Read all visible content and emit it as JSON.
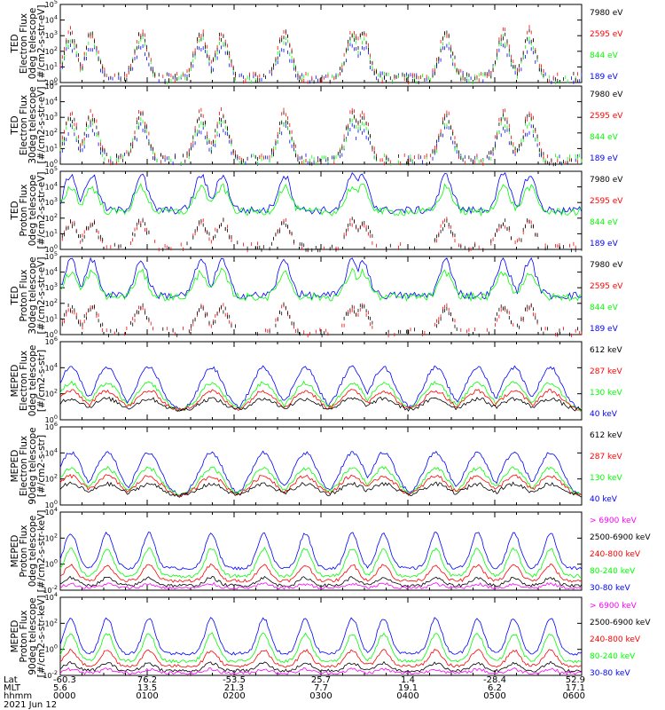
{
  "colors": {
    "black": "#000000",
    "red": "#ff0000",
    "green": "#00ff00",
    "blue": "#0000ff",
    "magenta": "#ff00ff"
  },
  "chart_data": [
    {
      "type": "line",
      "ylabel": [
        "TED",
        "Electron Flux",
        "0deg telescope",
        "[#/cm2-s-str-eV]"
      ],
      "yscale": "log",
      "ylim": [
        1,
        100000
      ],
      "ytick_labels": [
        "10^0",
        "10^1",
        "10^2",
        "10^3",
        "10^4",
        "10^5"
      ],
      "series": [
        {
          "name": "7980 eV",
          "color": "#000000",
          "profile": "ted_e0"
        },
        {
          "name": "2595 eV",
          "color": "#ff0000",
          "profile": "ted_e0"
        },
        {
          "name": "844 eV",
          "color": "#00ff00",
          "profile": "ted_e0"
        },
        {
          "name": "189 eV",
          "color": "#0000ff",
          "profile": "ted_e0"
        }
      ]
    },
    {
      "type": "line",
      "ylabel": [
        "TED",
        "Electron Flux",
        "30deg telescope",
        "[#/cm2-s-str-eV]"
      ],
      "yscale": "log",
      "ylim": [
        1,
        100000
      ],
      "ytick_labels": [
        "10^0",
        "10^1",
        "10^2",
        "10^3",
        "10^4",
        "10^5"
      ],
      "series": [
        {
          "name": "7980 eV",
          "color": "#000000",
          "profile": "ted_e30"
        },
        {
          "name": "2595 eV",
          "color": "#ff0000",
          "profile": "ted_e30"
        },
        {
          "name": "844 eV",
          "color": "#00ff00",
          "profile": "ted_e30"
        },
        {
          "name": "189 eV",
          "color": "#0000ff",
          "profile": "ted_e30"
        }
      ]
    },
    {
      "type": "line",
      "ylabel": [
        "TED",
        "Proton Flux",
        "0deg telescope",
        "[#/cm2-s-str-eV]"
      ],
      "yscale": "log",
      "ylim": [
        1,
        100000
      ],
      "ytick_labels": [
        "10^0",
        "10^1",
        "10^2",
        "10^3",
        "10^4",
        "10^5"
      ],
      "series": [
        {
          "name": "7980 eV",
          "color": "#000000",
          "profile": "ted_p0"
        },
        {
          "name": "2595 eV",
          "color": "#ff0000",
          "profile": "ted_p0"
        },
        {
          "name": "844 eV",
          "color": "#00ff00",
          "profile": "ted_p0"
        },
        {
          "name": "189 eV",
          "color": "#0000ff",
          "profile": "ted_p0"
        }
      ]
    },
    {
      "type": "line",
      "ylabel": [
        "TED",
        "Proton Flux",
        "30deg telescope",
        "[#/cm2-s-str-eV]"
      ],
      "yscale": "log",
      "ylim": [
        1,
        100000
      ],
      "ytick_labels": [
        "10^0",
        "10^1",
        "10^2",
        "10^3",
        "10^4",
        "10^5"
      ],
      "series": [
        {
          "name": "7980 eV",
          "color": "#000000",
          "profile": "ted_p30"
        },
        {
          "name": "2595 eV",
          "color": "#ff0000",
          "profile": "ted_p30"
        },
        {
          "name": "844 eV",
          "color": "#00ff00",
          "profile": "ted_p30"
        },
        {
          "name": "189 eV",
          "color": "#0000ff",
          "profile": "ted_p30"
        }
      ]
    },
    {
      "type": "line",
      "ylabel": [
        "MEPED",
        "Electron Flux",
        "0deg telescope",
        "[#/cm2-s-str]"
      ],
      "yscale": "log",
      "ylim": [
        1,
        1000000
      ],
      "ytick_labels": [
        "10^0",
        "10^2",
        "10^4",
        "10^6"
      ],
      "series": [
        {
          "name": "612 keV",
          "color": "#000000",
          "profile": "mep_e0"
        },
        {
          "name": "287 keV",
          "color": "#ff0000",
          "profile": "mep_e0"
        },
        {
          "name": "130 keV",
          "color": "#00ff00",
          "profile": "mep_e0"
        },
        {
          "name": "40 keV",
          "color": "#0000ff",
          "profile": "mep_e0"
        }
      ]
    },
    {
      "type": "line",
      "ylabel": [
        "MEPED",
        "Electron Flux",
        "90deg telescope",
        "[#/cm2-s-str]"
      ],
      "yscale": "log",
      "ylim": [
        1,
        1000000
      ],
      "ytick_labels": [
        "10^0",
        "10^2",
        "10^4",
        "10^6"
      ],
      "series": [
        {
          "name": "612 keV",
          "color": "#000000",
          "profile": "mep_e90"
        },
        {
          "name": "287 keV",
          "color": "#ff0000",
          "profile": "mep_e90"
        },
        {
          "name": "130 keV",
          "color": "#00ff00",
          "profile": "mep_e90"
        },
        {
          "name": "40 keV",
          "color": "#0000ff",
          "profile": "mep_e90"
        }
      ]
    },
    {
      "type": "line",
      "ylabel": [
        "MEPED",
        "Proton Flux",
        "0deg telescope",
        "[#/cm2-s-str-keV]"
      ],
      "yscale": "log",
      "ylim": [
        0.01,
        1000000
      ],
      "ytick_labels": [
        "10^-2",
        "10^0",
        "10^2",
        "10^4"
      ],
      "series": [
        {
          "name": "> 6900 keV",
          "color": "#ff00ff",
          "profile": "mep_p0"
        },
        {
          "name": "2500-6900 keV",
          "color": "#000000",
          "profile": "mep_p0"
        },
        {
          "name": "240-800 keV",
          "color": "#ff0000",
          "profile": "mep_p0"
        },
        {
          "name": "80-240 keV",
          "color": "#00ff00",
          "profile": "mep_p0"
        },
        {
          "name": "30-80 keV",
          "color": "#0000ff",
          "profile": "mep_p0"
        }
      ]
    },
    {
      "type": "line",
      "ylabel": [
        "MEPED",
        "Proton Flux",
        "90deg telescope",
        "[#/cm2-s-str-keV]"
      ],
      "yscale": "log",
      "ylim": [
        0.01,
        1000000
      ],
      "ytick_labels": [
        "10^-2",
        "10^0",
        "10^2",
        "10^4"
      ],
      "series": [
        {
          "name": "> 6900 keV",
          "color": "#ff00ff",
          "profile": "mep_p90"
        },
        {
          "name": "2500-6900 keV",
          "color": "#000000",
          "profile": "mep_p90"
        },
        {
          "name": "240-800 keV",
          "color": "#ff0000",
          "profile": "mep_p90"
        },
        {
          "name": "80-240 keV",
          "color": "#00ff00",
          "profile": "mep_p90"
        },
        {
          "name": "30-80 keV",
          "color": "#0000ff",
          "profile": "mep_p90"
        }
      ]
    }
  ],
  "xaxis": {
    "row_labels": [
      "Lat",
      "MLT",
      "hhmm"
    ],
    "date_label": "2021 Jun 12",
    "ticks": [
      {
        "lat": "-60.3",
        "mlt": "5.6",
        "hhmm": "0000"
      },
      {
        "lat": "76.2",
        "mlt": "13.5",
        "hhmm": "0100"
      },
      {
        "lat": "-53.5",
        "mlt": "21.3",
        "hhmm": "0200"
      },
      {
        "lat": "25.7",
        "mlt": "7.7",
        "hhmm": "0300"
      },
      {
        "lat": "1.4",
        "mlt": "19.1",
        "hhmm": "0400"
      },
      {
        "lat": "-28.4",
        "mlt": "6.2",
        "hhmm": "0500"
      },
      {
        "lat": "52.9",
        "mlt": "17.1",
        "hhmm": "0600"
      }
    ]
  }
}
